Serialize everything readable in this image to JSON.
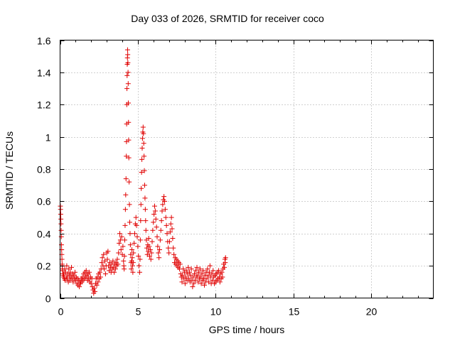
{
  "chart_data": {
    "type": "scatter",
    "title": "Day 033 of 2026, SRMTID for receiver coco",
    "xlabel": "GPS time / hours",
    "ylabel": "SRMTID / TECUs",
    "xlim": [
      0,
      24
    ],
    "ylim": [
      0,
      1.6
    ],
    "xticks": [
      0,
      5,
      10,
      15,
      20
    ],
    "yticks": [
      0,
      0.2,
      0.4,
      0.6,
      0.8,
      1,
      1.2,
      1.4,
      1.6
    ],
    "ytick_labels": [
      "0",
      "0.2",
      "0.4",
      "0.6",
      "0.8",
      "1",
      "1.2",
      "1.4",
      "1.6"
    ],
    "xtick_labels": [
      "0",
      "5",
      "10",
      "15",
      "20"
    ],
    "grid": true,
    "marker": "+",
    "color": "#e00000",
    "series": [
      {
        "name": "SRMTID",
        "points": [
          [
            0.02,
            0.57
          ],
          [
            0.03,
            0.55
          ],
          [
            0.04,
            0.52
          ],
          [
            0.05,
            0.49
          ],
          [
            0.06,
            0.46
          ],
          [
            0.07,
            0.42
          ],
          [
            0.08,
            0.38
          ],
          [
            0.09,
            0.33
          ],
          [
            0.1,
            0.3
          ],
          [
            0.11,
            0.27
          ],
          [
            0.12,
            0.24
          ],
          [
            0.13,
            0.21
          ],
          [
            0.14,
            0.2
          ],
          [
            0.15,
            0.18
          ],
          [
            0.16,
            0.17
          ],
          [
            0.18,
            0.15
          ],
          [
            0.2,
            0.14
          ],
          [
            0.22,
            0.13
          ],
          [
            0.25,
            0.15
          ],
          [
            0.28,
            0.12
          ],
          [
            0.3,
            0.18
          ],
          [
            0.33,
            0.11
          ],
          [
            0.36,
            0.16
          ],
          [
            0.4,
            0.13
          ],
          [
            0.43,
            0.2
          ],
          [
            0.46,
            0.12
          ],
          [
            0.5,
            0.15
          ],
          [
            0.53,
            0.1
          ],
          [
            0.56,
            0.18
          ],
          [
            0.6,
            0.14
          ],
          [
            0.63,
            0.11
          ],
          [
            0.66,
            0.16
          ],
          [
            0.7,
            0.13
          ],
          [
            0.73,
            0.19
          ],
          [
            0.77,
            0.12
          ],
          [
            0.8,
            0.15
          ],
          [
            0.84,
            0.1
          ],
          [
            0.88,
            0.14
          ],
          [
            0.92,
            0.12
          ],
          [
            0.96,
            0.16
          ],
          [
            1.0,
            0.11
          ],
          [
            1.04,
            0.13
          ],
          [
            1.08,
            0.09
          ],
          [
            1.12,
            0.12
          ],
          [
            1.16,
            0.08
          ],
          [
            1.2,
            0.11
          ],
          [
            1.24,
            0.07
          ],
          [
            1.28,
            0.1
          ],
          [
            1.32,
            0.09
          ],
          [
            1.36,
            0.12
          ],
          [
            1.4,
            0.1
          ],
          [
            1.44,
            0.13
          ],
          [
            1.48,
            0.11
          ],
          [
            1.52,
            0.15
          ],
          [
            1.56,
            0.12
          ],
          [
            1.6,
            0.16
          ],
          [
            1.64,
            0.13
          ],
          [
            1.68,
            0.17
          ],
          [
            1.72,
            0.14
          ],
          [
            1.76,
            0.11
          ],
          [
            1.8,
            0.15
          ],
          [
            1.84,
            0.12
          ],
          [
            1.88,
            0.16
          ],
          [
            1.92,
            0.1
          ],
          [
            1.96,
            0.13
          ],
          [
            2.0,
            0.09
          ],
          [
            2.04,
            0.12
          ],
          [
            2.08,
            0.07
          ],
          [
            2.12,
            0.05
          ],
          [
            2.16,
            0.03
          ],
          [
            2.2,
            0.06
          ],
          [
            2.24,
            0.04
          ],
          [
            2.28,
            0.09
          ],
          [
            2.32,
            0.12
          ],
          [
            2.36,
            0.08
          ],
          [
            2.4,
            0.13
          ],
          [
            2.44,
            0.1
          ],
          [
            2.48,
            0.15
          ],
          [
            2.52,
            0.12
          ],
          [
            2.56,
            0.16
          ],
          [
            2.6,
            0.13
          ],
          [
            2.64,
            0.18
          ],
          [
            2.68,
            0.22
          ],
          [
            2.72,
            0.25
          ],
          [
            2.76,
            0.2
          ],
          [
            2.8,
            0.27
          ],
          [
            2.84,
            0.18
          ],
          [
            2.88,
            0.23
          ],
          [
            2.92,
            0.15
          ],
          [
            2.96,
            0.2
          ],
          [
            3.0,
            0.28
          ],
          [
            3.04,
            0.24
          ],
          [
            3.08,
            0.29
          ],
          [
            3.12,
            0.2
          ],
          [
            3.16,
            0.17
          ],
          [
            3.2,
            0.22
          ],
          [
            3.24,
            0.19
          ],
          [
            3.28,
            0.16
          ],
          [
            3.32,
            0.21
          ],
          [
            3.36,
            0.18
          ],
          [
            3.4,
            0.23
          ],
          [
            3.44,
            0.19
          ],
          [
            3.48,
            0.16
          ],
          [
            3.52,
            0.21
          ],
          [
            3.56,
            0.18
          ],
          [
            3.6,
            0.22
          ],
          [
            3.64,
            0.2
          ],
          [
            3.68,
            0.24
          ],
          [
            3.72,
            0.21
          ],
          [
            3.76,
            0.28
          ],
          [
            3.8,
            0.34
          ],
          [
            3.84,
            0.4
          ],
          [
            3.88,
            0.36
          ],
          [
            3.92,
            0.3
          ],
          [
            3.96,
            0.38
          ],
          [
            4.0,
            0.27
          ],
          [
            4.04,
            0.32
          ],
          [
            4.08,
            0.23
          ],
          [
            4.1,
            0.2
          ],
          [
            4.12,
            0.18
          ],
          [
            4.14,
            0.26
          ],
          [
            4.16,
            0.36
          ],
          [
            4.18,
            0.45
          ],
          [
            4.2,
            0.55
          ],
          [
            4.22,
            0.64
          ],
          [
            4.24,
            0.74
          ],
          [
            4.26,
            0.88
          ],
          [
            4.27,
            0.97
          ],
          [
            4.28,
            1.08
          ],
          [
            4.29,
            1.2
          ],
          [
            4.3,
            1.3
          ],
          [
            4.31,
            1.38
          ],
          [
            4.32,
            1.45
          ],
          [
            4.33,
            1.49
          ],
          [
            4.34,
            1.54
          ],
          [
            4.35,
            1.51
          ],
          [
            4.36,
            1.46
          ],
          [
            4.37,
            1.4
          ],
          [
            4.38,
            1.33
          ],
          [
            4.39,
            1.21
          ],
          [
            4.4,
            1.09
          ],
          [
            4.41,
            0.98
          ],
          [
            4.42,
            0.87
          ],
          [
            4.44,
            0.72
          ],
          [
            4.46,
            0.58
          ],
          [
            4.48,
            0.47
          ],
          [
            4.5,
            0.4
          ],
          [
            4.52,
            0.33
          ],
          [
            4.54,
            0.27
          ],
          [
            4.56,
            0.22
          ],
          [
            4.58,
            0.18
          ],
          [
            4.6,
            0.23
          ],
          [
            4.62,
            0.3
          ],
          [
            4.64,
            0.25
          ],
          [
            4.66,
            0.2
          ],
          [
            4.68,
            0.16
          ],
          [
            4.7,
            0.22
          ],
          [
            4.72,
            0.28
          ],
          [
            4.76,
            0.34
          ],
          [
            4.8,
            0.4
          ],
          [
            4.84,
            0.46
          ],
          [
            4.88,
            0.5
          ],
          [
            4.92,
            0.45
          ],
          [
            4.96,
            0.38
          ],
          [
            5.0,
            0.32
          ],
          [
            5.04,
            0.26
          ],
          [
            5.08,
            0.2
          ],
          [
            5.12,
            0.16
          ],
          [
            5.14,
            0.24
          ],
          [
            5.16,
            0.36
          ],
          [
            5.18,
            0.48
          ],
          [
            5.2,
            0.58
          ],
          [
            5.22,
            0.68
          ],
          [
            5.24,
            0.78
          ],
          [
            5.26,
            0.86
          ],
          [
            5.28,
            0.93
          ],
          [
            5.3,
            0.99
          ],
          [
            5.32,
            1.03
          ],
          [
            5.34,
            1.06
          ],
          [
            5.36,
            1.02
          ],
          [
            5.38,
            0.96
          ],
          [
            5.4,
            0.88
          ],
          [
            5.42,
            0.79
          ],
          [
            5.44,
            0.7
          ],
          [
            5.46,
            0.62
          ],
          [
            5.48,
            0.55
          ],
          [
            5.5,
            0.48
          ],
          [
            5.52,
            0.42
          ],
          [
            5.55,
            0.36
          ],
          [
            5.58,
            0.31
          ],
          [
            5.61,
            0.27
          ],
          [
            5.64,
            0.33
          ],
          [
            5.67,
            0.29
          ],
          [
            5.7,
            0.37
          ],
          [
            5.73,
            0.32
          ],
          [
            5.76,
            0.26
          ],
          [
            5.8,
            0.3
          ],
          [
            5.84,
            0.24
          ],
          [
            5.88,
            0.28
          ],
          [
            5.92,
            0.35
          ],
          [
            5.96,
            0.42
          ],
          [
            6.0,
            0.47
          ],
          [
            6.04,
            0.52
          ],
          [
            6.08,
            0.57
          ],
          [
            6.12,
            0.54
          ],
          [
            6.16,
            0.49
          ],
          [
            6.2,
            0.44
          ],
          [
            6.24,
            0.38
          ],
          [
            6.28,
            0.32
          ],
          [
            6.32,
            0.28
          ],
          [
            6.36,
            0.25
          ],
          [
            6.4,
            0.3
          ],
          [
            6.44,
            0.36
          ],
          [
            6.48,
            0.42
          ],
          [
            6.52,
            0.48
          ],
          [
            6.56,
            0.54
          ],
          [
            6.6,
            0.58
          ],
          [
            6.64,
            0.61
          ],
          [
            6.68,
            0.63
          ],
          [
            6.72,
            0.6
          ],
          [
            6.76,
            0.55
          ],
          [
            6.8,
            0.5
          ],
          [
            6.84,
            0.45
          ],
          [
            6.88,
            0.4
          ],
          [
            6.92,
            0.35
          ],
          [
            6.96,
            0.31
          ],
          [
            7.0,
            0.28
          ],
          [
            7.04,
            0.35
          ],
          [
            7.08,
            0.41
          ],
          [
            7.12,
            0.46
          ],
          [
            7.16,
            0.5
          ],
          [
            7.2,
            0.43
          ],
          [
            7.24,
            0.37
          ],
          [
            7.28,
            0.31
          ],
          [
            7.32,
            0.27
          ],
          [
            7.36,
            0.22
          ],
          [
            7.4,
            0.25
          ],
          [
            7.44,
            0.21
          ],
          [
            7.48,
            0.24
          ],
          [
            7.52,
            0.2
          ],
          [
            7.56,
            0.23
          ],
          [
            7.6,
            0.19
          ],
          [
            7.64,
            0.22
          ],
          [
            7.68,
            0.18
          ],
          [
            7.72,
            0.21
          ],
          [
            7.76,
            0.15
          ],
          [
            7.8,
            0.13
          ],
          [
            7.84,
            0.1
          ],
          [
            7.88,
            0.14
          ],
          [
            7.92,
            0.18
          ],
          [
            7.96,
            0.12
          ],
          [
            8.0,
            0.16
          ],
          [
            8.04,
            0.09
          ],
          [
            8.08,
            0.13
          ],
          [
            8.12,
            0.17
          ],
          [
            8.16,
            0.11
          ],
          [
            8.2,
            0.15
          ],
          [
            8.24,
            0.19
          ],
          [
            8.28,
            0.12
          ],
          [
            8.32,
            0.16
          ],
          [
            8.36,
            0.1
          ],
          [
            8.4,
            0.14
          ],
          [
            8.44,
            0.18
          ],
          [
            8.48,
            0.11
          ],
          [
            8.52,
            0.07
          ],
          [
            8.56,
            0.13
          ],
          [
            8.6,
            0.09
          ],
          [
            8.64,
            0.15
          ],
          [
            8.68,
            0.11
          ],
          [
            8.72,
            0.17
          ],
          [
            8.76,
            0.13
          ],
          [
            8.8,
            0.19
          ],
          [
            8.84,
            0.14
          ],
          [
            8.88,
            0.1
          ],
          [
            8.92,
            0.16
          ],
          [
            8.96,
            0.12
          ],
          [
            9.0,
            0.18
          ],
          [
            9.04,
            0.13
          ],
          [
            9.08,
            0.09
          ],
          [
            9.12,
            0.15
          ],
          [
            9.16,
            0.11
          ],
          [
            9.2,
            0.17
          ],
          [
            9.24,
            0.12
          ],
          [
            9.28,
            0.08
          ],
          [
            9.32,
            0.14
          ],
          [
            9.36,
            0.1
          ],
          [
            9.4,
            0.16
          ],
          [
            9.44,
            0.12
          ],
          [
            9.48,
            0.18
          ],
          [
            9.52,
            0.14
          ],
          [
            9.56,
            0.1
          ],
          [
            9.6,
            0.16
          ],
          [
            9.64,
            0.2
          ],
          [
            9.68,
            0.13
          ],
          [
            9.72,
            0.09
          ],
          [
            9.76,
            0.15
          ],
          [
            9.8,
            0.11
          ],
          [
            9.84,
            0.17
          ],
          [
            9.88,
            0.13
          ],
          [
            9.92,
            0.09
          ],
          [
            9.96,
            0.14
          ],
          [
            10.0,
            0.1
          ],
          [
            10.04,
            0.15
          ],
          [
            10.08,
            0.11
          ],
          [
            10.12,
            0.16
          ],
          [
            10.16,
            0.12
          ],
          [
            10.2,
            0.17
          ],
          [
            10.24,
            0.13
          ],
          [
            10.28,
            0.1
          ],
          [
            10.32,
            0.15
          ],
          [
            10.36,
            0.12
          ],
          [
            10.4,
            0.16
          ],
          [
            10.44,
            0.13
          ],
          [
            10.48,
            0.18
          ],
          [
            10.52,
            0.21
          ],
          [
            10.56,
            0.19
          ],
          [
            10.6,
            0.24
          ],
          [
            10.62,
            0.22
          ],
          [
            10.64,
            0.25
          ]
        ]
      }
    ]
  }
}
